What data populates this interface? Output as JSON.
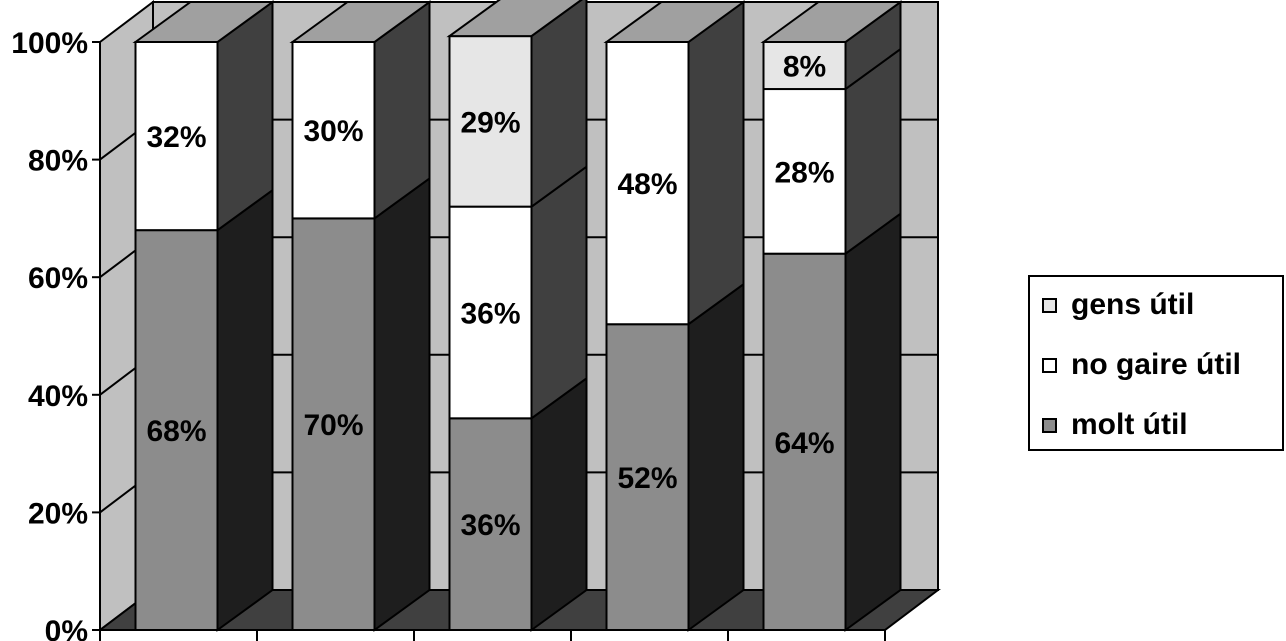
{
  "chart_data": {
    "type": "bar",
    "stacked": true,
    "percent_stacked": true,
    "three_d": true,
    "categories": [
      "",
      "",
      "",
      "",
      ""
    ],
    "series": [
      {
        "name": "molt útil",
        "values": [
          68,
          70,
          36,
          52,
          64
        ],
        "color": "#8c8c8c",
        "side_color": "#1e1e1e",
        "labels": [
          "68%",
          "70%",
          "36%",
          "52%",
          "64%"
        ]
      },
      {
        "name": "no gaire útil",
        "values": [
          32,
          30,
          36,
          48,
          28
        ],
        "color": "#ffffff",
        "side_color": "#404040",
        "labels": [
          "32%",
          "30%",
          "36%",
          "48%",
          "28%"
        ]
      },
      {
        "name": "gens útil",
        "values": [
          0,
          0,
          29,
          0,
          8
        ],
        "color": "#e6e6e6",
        "side_color": "#404040",
        "labels": [
          "",
          "",
          "29%",
          "",
          "8%"
        ]
      }
    ],
    "yticks": [
      "0%",
      "20%",
      "40%",
      "60%",
      "80%",
      "100%"
    ],
    "ylim": [
      0,
      100
    ],
    "grid": true,
    "legend_position": "right",
    "colors": {
      "wall": "#c0c0c0",
      "floor": "#404040",
      "top_face": "#a0a0a0"
    }
  },
  "legend": {
    "items": [
      {
        "label": "gens útil",
        "color": "#e6e6e6"
      },
      {
        "label": "no gaire útil",
        "color": "#ffffff"
      },
      {
        "label": "molt útil",
        "color": "#8c8c8c"
      }
    ]
  }
}
